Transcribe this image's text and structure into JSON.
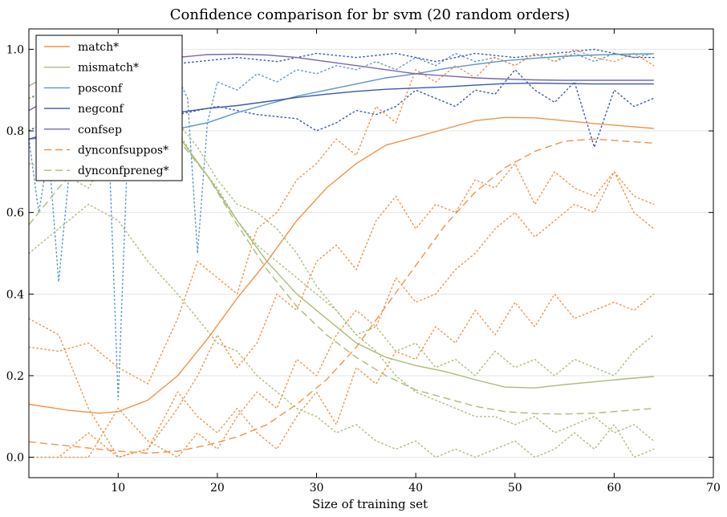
{
  "chart_data": {
    "type": "line",
    "title": "Confidence comparison for br svm (20 random orders)",
    "xlabel": "Size of training set",
    "ylabel": "",
    "xlim": [
      1,
      70
    ],
    "ylim": [
      -0.05,
      1.05
    ],
    "xticks": [
      10,
      20,
      30,
      40,
      50,
      60,
      70
    ],
    "yticks": [
      "0.0",
      "0.2",
      "0.4",
      "0.6",
      "0.8",
      "1.0"
    ],
    "grid": "horizontal",
    "legend_position": "top-left",
    "colors": {
      "orange": "#f0934a",
      "green": "#a9bd7a",
      "lightblue": "#5e95c7",
      "blue": "#3a57ae",
      "purple": "#7a68ad"
    },
    "series": [
      {
        "name": "match*",
        "color": "#f0934a",
        "style": "solid",
        "x": [
          1,
          5,
          8,
          10,
          13,
          16,
          19,
          22,
          25,
          28,
          31,
          34,
          37,
          40,
          43,
          46,
          49,
          52,
          55,
          58,
          61,
          64
        ],
        "y": [
          0.13,
          0.115,
          0.108,
          0.112,
          0.14,
          0.2,
          0.29,
          0.39,
          0.48,
          0.58,
          0.66,
          0.72,
          0.765,
          0.785,
          0.805,
          0.825,
          0.833,
          0.832,
          0.825,
          0.818,
          0.812,
          0.806
        ]
      },
      {
        "name": "mismatch*",
        "color": "#a9bd7a",
        "style": "solid",
        "x": [
          1,
          4,
          7,
          10,
          13,
          16,
          19,
          22,
          25,
          28,
          31,
          34,
          37,
          40,
          43,
          46,
          49,
          52,
          55,
          58,
          61,
          64
        ],
        "y": [
          0.91,
          0.95,
          0.93,
          0.9,
          0.86,
          0.79,
          0.69,
          0.58,
          0.48,
          0.4,
          0.34,
          0.28,
          0.245,
          0.225,
          0.21,
          0.19,
          0.172,
          0.17,
          0.178,
          0.185,
          0.192,
          0.198
        ]
      },
      {
        "name": "posconf",
        "color": "#5e95c7",
        "style": "solid",
        "x": [
          1,
          4,
          7,
          10,
          13,
          16,
          19,
          22,
          25,
          28,
          31,
          34,
          37,
          40,
          43,
          46,
          49,
          52,
          55,
          58,
          61,
          64
        ],
        "y": [
          0.78,
          0.785,
          0.79,
          0.795,
          0.8,
          0.805,
          0.82,
          0.845,
          0.865,
          0.885,
          0.9,
          0.915,
          0.93,
          0.94,
          0.953,
          0.963,
          0.972,
          0.978,
          0.983,
          0.986,
          0.988,
          0.989
        ]
      },
      {
        "name": "negconf",
        "color": "#3a57ae",
        "style": "solid",
        "x": [
          1,
          4,
          7,
          10,
          13,
          16,
          19,
          22,
          25,
          28,
          31,
          34,
          37,
          40,
          43,
          46,
          49,
          52,
          55,
          58,
          61,
          64
        ],
        "y": [
          0.78,
          0.8,
          0.815,
          0.825,
          0.835,
          0.845,
          0.855,
          0.862,
          0.872,
          0.882,
          0.89,
          0.897,
          0.902,
          0.905,
          0.908,
          0.912,
          0.916,
          0.917,
          0.916,
          0.915,
          0.915,
          0.915
        ]
      },
      {
        "name": "confsep",
        "color": "#7a68ad",
        "style": "solid",
        "x": [
          1,
          4,
          7,
          10,
          13,
          16,
          19,
          22,
          25,
          28,
          31,
          34,
          37,
          40,
          43,
          46,
          49,
          52,
          55,
          58,
          61,
          64
        ],
        "y": [
          0.85,
          0.89,
          0.92,
          0.945,
          0.965,
          0.98,
          0.987,
          0.988,
          0.986,
          0.98,
          0.97,
          0.96,
          0.95,
          0.94,
          0.935,
          0.93,
          0.927,
          0.925,
          0.924,
          0.924,
          0.924,
          0.924
        ]
      },
      {
        "name": "dynconfsuppos*",
        "color": "#f0934a",
        "style": "dashed",
        "x": [
          1,
          5,
          10,
          13,
          16,
          19,
          22,
          25,
          28,
          31,
          34,
          37,
          40,
          43,
          46,
          49,
          52,
          55,
          58,
          61,
          64
        ],
        "y": [
          0.038,
          0.028,
          0.015,
          0.01,
          0.015,
          0.03,
          0.05,
          0.08,
          0.13,
          0.19,
          0.27,
          0.37,
          0.47,
          0.57,
          0.65,
          0.71,
          0.75,
          0.775,
          0.78,
          0.775,
          0.77
        ]
      },
      {
        "name": "dynconfpreneg*",
        "color": "#a9bd7a",
        "style": "dashed",
        "x": [
          1,
          4,
          7,
          10,
          13,
          16,
          19,
          22,
          25,
          28,
          31,
          34,
          37,
          40,
          43,
          46,
          49,
          52,
          55,
          58,
          61,
          64
        ],
        "y": [
          0.57,
          0.66,
          0.74,
          0.8,
          0.81,
          0.78,
          0.69,
          0.57,
          0.46,
          0.37,
          0.3,
          0.245,
          0.2,
          0.165,
          0.145,
          0.125,
          0.112,
          0.107,
          0.106,
          0.108,
          0.114,
          0.12
        ]
      }
    ],
    "traces": [
      {
        "color": "#5e95c7",
        "x": [
          1,
          2,
          3,
          4,
          5,
          6,
          7,
          8,
          9,
          10,
          11,
          12,
          13,
          14,
          15,
          16,
          17,
          18,
          19,
          20,
          22,
          24,
          26,
          28,
          30,
          32,
          34,
          36,
          38,
          40,
          42,
          44,
          46,
          48,
          50,
          52,
          54,
          56,
          58,
          60,
          62,
          64
        ],
        "y": [
          0.78,
          0.6,
          0.75,
          0.43,
          0.68,
          0.79,
          0.84,
          0.82,
          0.81,
          0.14,
          0.78,
          0.86,
          0.88,
          0.9,
          0.86,
          0.93,
          0.88,
          0.5,
          0.82,
          0.92,
          0.9,
          0.94,
          0.92,
          0.95,
          0.94,
          0.96,
          0.95,
          0.97,
          0.95,
          0.98,
          0.96,
          0.99,
          0.97,
          0.98,
          0.96,
          0.99,
          0.97,
          0.99,
          0.97,
          0.99,
          0.98,
          0.99
        ]
      },
      {
        "color": "#3a57ae",
        "x": [
          1,
          4,
          8,
          12,
          16,
          20,
          24,
          28,
          30,
          32,
          34,
          36,
          38,
          40,
          42,
          44,
          46,
          48,
          50,
          52,
          54,
          56,
          58,
          60,
          62,
          64
        ],
        "y": [
          0.8,
          0.84,
          0.86,
          0.83,
          0.84,
          0.86,
          0.84,
          0.83,
          0.8,
          0.82,
          0.85,
          0.84,
          0.86,
          0.9,
          0.88,
          0.86,
          0.9,
          0.89,
          0.95,
          0.9,
          0.87,
          0.92,
          0.76,
          0.9,
          0.86,
          0.88
        ]
      },
      {
        "color": "#3a57ae",
        "x": [
          1,
          5,
          10,
          14,
          18,
          22,
          26,
          30,
          34,
          38,
          42,
          46,
          50,
          54,
          58,
          62,
          64
        ],
        "y": [
          0.88,
          0.92,
          0.95,
          0.96,
          0.97,
          0.98,
          0.97,
          0.99,
          0.98,
          0.99,
          0.97,
          0.99,
          0.98,
          0.99,
          1.0,
          0.98,
          0.98
        ]
      },
      {
        "color": "#f0934a",
        "x": [
          1,
          4,
          7,
          10,
          13,
          16,
          18,
          20,
          22,
          24,
          26,
          28,
          30,
          32,
          34,
          36,
          38,
          40,
          42,
          44,
          46,
          48,
          50,
          52,
          54,
          56,
          58,
          60,
          62,
          64
        ],
        "y": [
          0.27,
          0.26,
          0.28,
          0.22,
          0.18,
          0.34,
          0.48,
          0.44,
          0.4,
          0.56,
          0.6,
          0.68,
          0.72,
          0.78,
          0.74,
          0.86,
          0.82,
          0.95,
          0.92,
          0.96,
          0.93,
          0.98,
          0.96,
          0.99,
          0.97,
          1.0,
          0.98,
          0.97,
          0.99,
          0.96
        ]
      },
      {
        "color": "#f0934a",
        "x": [
          1,
          4,
          7,
          10,
          13,
          16,
          18,
          20,
          22,
          24,
          26,
          28,
          30,
          32,
          34,
          36,
          38,
          40,
          42,
          44,
          46,
          48,
          50,
          52,
          54,
          56,
          58,
          60,
          62,
          64
        ],
        "y": [
          0.0,
          0.0,
          0.06,
          0.0,
          0.02,
          0.12,
          0.2,
          0.3,
          0.22,
          0.28,
          0.4,
          0.36,
          0.48,
          0.52,
          0.46,
          0.58,
          0.64,
          0.56,
          0.62,
          0.6,
          0.68,
          0.66,
          0.72,
          0.62,
          0.7,
          0.66,
          0.64,
          0.7,
          0.6,
          0.56
        ]
      },
      {
        "color": "#f0934a",
        "x": [
          1,
          4,
          7,
          10,
          13,
          16,
          18,
          20,
          22,
          24,
          26,
          28,
          30,
          32,
          34,
          36,
          38,
          40,
          42,
          44,
          46,
          48,
          50,
          52,
          54,
          56,
          58,
          60,
          62,
          64
        ],
        "y": [
          0.0,
          0.0,
          0.0,
          0.12,
          0.04,
          0.0,
          0.06,
          0.02,
          0.1,
          0.16,
          0.12,
          0.24,
          0.2,
          0.3,
          0.36,
          0.32,
          0.44,
          0.38,
          0.4,
          0.46,
          0.5,
          0.56,
          0.6,
          0.54,
          0.58,
          0.62,
          0.6,
          0.7,
          0.64,
          0.62
        ]
      },
      {
        "color": "#f0934a",
        "x": [
          1,
          4,
          7,
          10,
          13,
          16,
          18,
          20,
          22,
          24,
          26,
          28,
          30,
          32,
          34,
          36,
          38,
          40,
          42,
          44,
          46,
          48,
          50,
          52,
          54,
          56,
          58,
          60,
          62,
          64
        ],
        "y": [
          0.34,
          0.3,
          0.12,
          0.0,
          0.02,
          0.16,
          0.1,
          0.06,
          0.12,
          0.06,
          0.02,
          0.1,
          0.16,
          0.08,
          0.22,
          0.18,
          0.26,
          0.24,
          0.32,
          0.28,
          0.36,
          0.3,
          0.38,
          0.32,
          0.4,
          0.34,
          0.36,
          0.38,
          0.36,
          0.4
        ]
      },
      {
        "color": "#a9bd7a",
        "x": [
          1,
          4,
          7,
          10,
          13,
          16,
          18,
          20,
          22,
          24,
          26,
          28,
          30,
          32,
          34,
          36,
          38,
          40,
          42,
          44,
          46,
          48,
          50,
          52,
          54,
          56,
          58,
          60,
          62,
          64
        ],
        "y": [
          0.72,
          0.7,
          0.66,
          0.78,
          0.86,
          0.8,
          0.72,
          0.66,
          0.58,
          0.52,
          0.48,
          0.44,
          0.4,
          0.36,
          0.3,
          0.32,
          0.26,
          0.28,
          0.22,
          0.24,
          0.2,
          0.26,
          0.22,
          0.24,
          0.2,
          0.24,
          0.22,
          0.2,
          0.26,
          0.3
        ]
      },
      {
        "color": "#a9bd7a",
        "x": [
          1,
          4,
          7,
          10,
          13,
          16,
          18,
          20,
          22,
          24,
          26,
          28,
          30,
          32,
          34,
          36,
          38,
          40,
          42,
          44,
          46,
          48,
          50,
          52,
          54,
          56,
          58,
          60,
          62,
          64
        ],
        "y": [
          0.88,
          0.9,
          0.92,
          0.9,
          0.86,
          0.82,
          0.76,
          0.68,
          0.62,
          0.6,
          0.56,
          0.5,
          0.42,
          0.36,
          0.3,
          0.26,
          0.2,
          0.16,
          0.14,
          0.12,
          0.1,
          0.1,
          0.08,
          0.1,
          0.06,
          0.08,
          0.1,
          0.06,
          0.08,
          0.04
        ]
      },
      {
        "color": "#a9bd7a",
        "x": [
          1,
          4,
          7,
          10,
          13,
          16,
          18,
          20,
          22,
          24,
          26,
          28,
          30,
          32,
          34,
          36,
          38,
          40,
          42,
          44,
          46,
          48,
          50,
          52,
          54,
          56,
          58,
          60,
          62,
          64
        ],
        "y": [
          0.5,
          0.56,
          0.62,
          0.58,
          0.48,
          0.4,
          0.34,
          0.28,
          0.26,
          0.2,
          0.16,
          0.12,
          0.1,
          0.06,
          0.08,
          0.04,
          0.02,
          0.04,
          0.0,
          0.02,
          0.0,
          0.02,
          0.04,
          0.0,
          0.02,
          0.06,
          0.02,
          0.08,
          0.0,
          0.02
        ]
      }
    ]
  }
}
